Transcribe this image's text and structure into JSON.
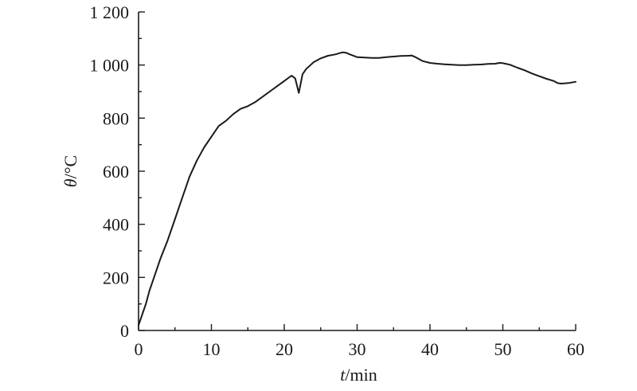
{
  "chart_data": {
    "type": "line",
    "title": "",
    "xlabel_var": "t",
    "xlabel_unit": "/min",
    "ylabel_var": "θ",
    "ylabel_unit": "/°C",
    "xlim": [
      0,
      60
    ],
    "ylim": [
      0,
      1200
    ],
    "x_ticks": [
      0,
      10,
      20,
      30,
      40,
      50,
      60
    ],
    "x_tick_labels": [
      "0",
      "10",
      "20",
      "30",
      "40",
      "50",
      "60"
    ],
    "y_ticks": [
      0,
      200,
      400,
      600,
      800,
      1000,
      1200
    ],
    "y_tick_labels": [
      "0",
      "200",
      "400",
      "600",
      "800",
      "1 000",
      "1 200"
    ],
    "grid": false,
    "series": [
      {
        "x": [
          0,
          0.5,
          1,
          1.5,
          2,
          3,
          4,
          5,
          6,
          7,
          8,
          9,
          10,
          11,
          12,
          13,
          14,
          15,
          16,
          17,
          18,
          19,
          20,
          21,
          21.5,
          22,
          22.5,
          23,
          24,
          25,
          26,
          27,
          28,
          28.5,
          29,
          30,
          31,
          32,
          33,
          34,
          35,
          36,
          37,
          37.5,
          38,
          39,
          40,
          41,
          42,
          43,
          44,
          45,
          46,
          47,
          48,
          49,
          49.5,
          50,
          51,
          52,
          53,
          54,
          55,
          56,
          57,
          57.5,
          58,
          59,
          60
        ],
        "y": [
          20,
          60,
          100,
          150,
          190,
          270,
          340,
          420,
          500,
          580,
          640,
          690,
          730,
          770,
          790,
          815,
          835,
          845,
          860,
          880,
          900,
          920,
          940,
          960,
          950,
          895,
          965,
          985,
          1010,
          1025,
          1035,
          1040,
          1048,
          1046,
          1040,
          1030,
          1028,
          1027,
          1027,
          1030,
          1032,
          1034,
          1035,
          1036,
          1030,
          1015,
          1008,
          1005,
          1003,
          1001,
          1000,
          1000,
          1001,
          1002,
          1004,
          1005,
          1008,
          1007,
          1001,
          990,
          980,
          968,
          958,
          948,
          940,
          932,
          930,
          932,
          937
        ]
      }
    ]
  }
}
